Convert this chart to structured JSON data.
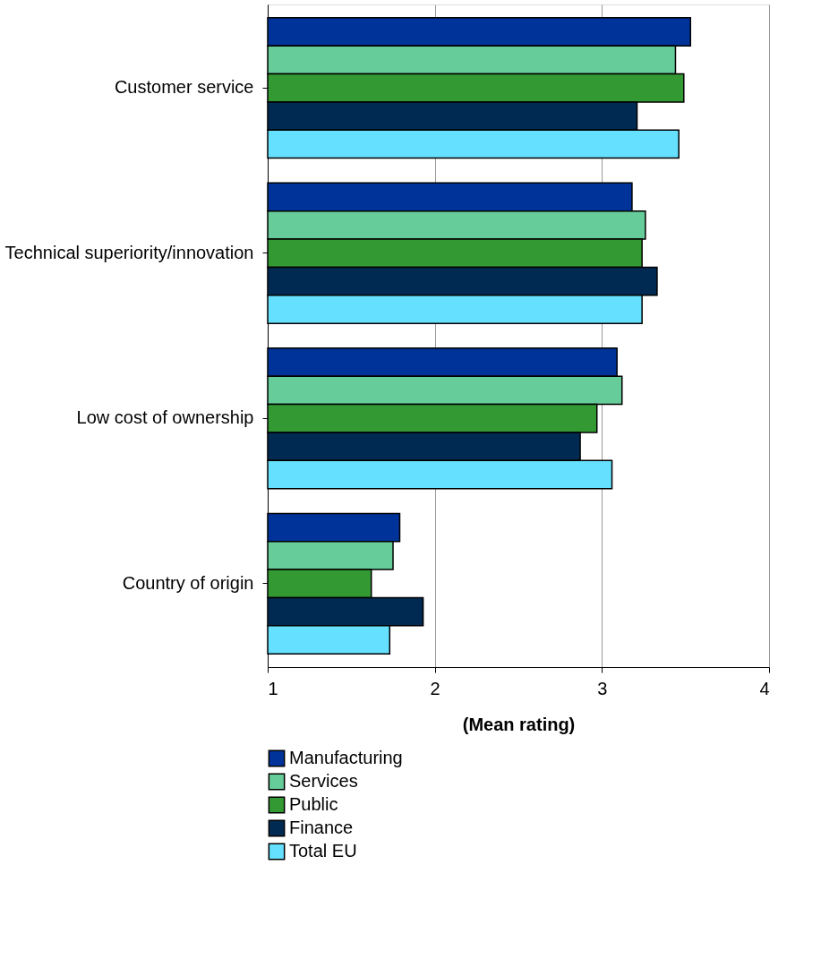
{
  "chart_data": {
    "type": "bar",
    "orientation": "horizontal",
    "xlabel": "(Mean rating)",
    "categories": [
      "Customer service",
      "Technical superiority/innovation",
      "Low cost of ownership",
      "Country of origin"
    ],
    "series": [
      {
        "name": "Manufacturing",
        "color": "#003399",
        "values": [
          3.53,
          3.18,
          3.09,
          1.79
        ]
      },
      {
        "name": "Services",
        "color": "#66cc99",
        "values": [
          3.44,
          3.26,
          3.12,
          1.75
        ]
      },
      {
        "name": "Public",
        "color": "#339933",
        "values": [
          3.49,
          3.24,
          2.97,
          1.62
        ]
      },
      {
        "name": "Finance",
        "color": "#002a52",
        "values": [
          3.21,
          3.33,
          2.87,
          1.93
        ]
      },
      {
        "name": "Total EU",
        "color": "#66e0ff",
        "values": [
          3.46,
          3.24,
          3.06,
          1.73
        ]
      }
    ],
    "xlim": [
      1,
      4
    ],
    "xticks": [
      1,
      2,
      3,
      4
    ],
    "grid": "x",
    "legend": "bottom"
  }
}
